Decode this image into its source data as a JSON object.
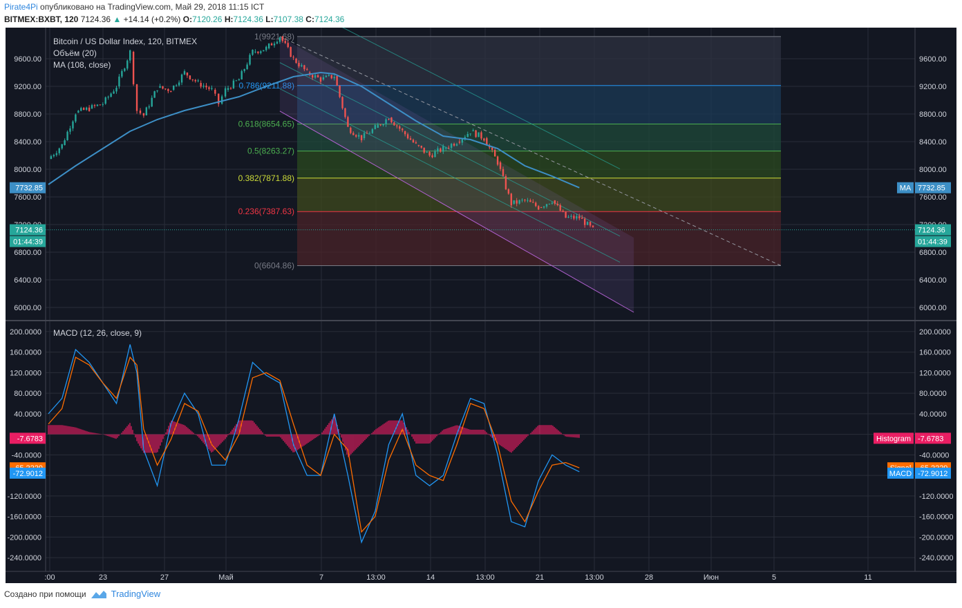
{
  "header": {
    "user": "Pirate4Pi",
    "published": "опубликовано на TradingView.com, Май 29, 2018 11:15 ICT",
    "symbol": "BITMEX:BXBT, 120",
    "last": "7124.36",
    "change": "+14.14 (+0.2%)",
    "o_label": "O:",
    "o": "7120.26",
    "h_label": "H:",
    "h": "7124.36",
    "l_label": "L:",
    "l": "7107.38",
    "c_label": "C:",
    "c": "7124.36"
  },
  "legend": {
    "title": "Bitcoin / US Dollar Index, 120, BITMEX",
    "volume": "Объём (20)",
    "ma": "MA (108, close)",
    "macd": "MACD (12, 26, close, 9)"
  },
  "footer": {
    "created": "Создано при помощи",
    "brand": "TradingView"
  },
  "colors": {
    "bg": "#131722",
    "grid": "#2a2e39",
    "up": "#26a69a",
    "down": "#ef5350",
    "ma": "#3d8fc6",
    "macd": "#2196f3",
    "signal": "#ff6d00",
    "hist": "#e91e63"
  },
  "chart_data": [
    {
      "type": "candlestick",
      "title": "Bitcoin / US Dollar Index, 120, BITMEX",
      "x_ticks": [
        ":00",
        "23",
        "27",
        "Май",
        "7",
        "13:00",
        "14",
        "13:00",
        "21",
        "13:00",
        "28",
        "Июн",
        "5",
        "11"
      ],
      "y_ticks": [
        "9600.00",
        "9200.00",
        "8800.00",
        "8400.00",
        "8000.00",
        "7600.00",
        "7200.00",
        "6800.00",
        "6400.00",
        "6000.00"
      ],
      "ylim": [
        5850,
        9950
      ],
      "path_points": [
        [
          "Apr 19",
          8150
        ],
        [
          "Apr 20",
          8350
        ],
        [
          "Apr 21",
          8820
        ],
        [
          "Apr 22",
          8880
        ],
        [
          "Apr 23",
          8950
        ],
        [
          "Apr 24",
          9200
        ],
        [
          "Apr 25",
          9700
        ],
        [
          "Apr 25 12h",
          8850
        ],
        [
          "Apr 26",
          8780
        ],
        [
          "Apr 27",
          9180
        ],
        [
          "Apr 28",
          9150
        ],
        [
          "Apr 29",
          9400
        ],
        [
          "Apr 30",
          9250
        ],
        [
          "May 1",
          9150
        ],
        [
          "May 1 12h",
          8950
        ],
        [
          "May 2",
          9150
        ],
        [
          "May 3",
          9300
        ],
        [
          "May 4",
          9700
        ],
        [
          "May 5",
          9750
        ],
        [
          "May 6",
          9921.68
        ],
        [
          "May 7",
          9600
        ],
        [
          "May 8",
          9400
        ],
        [
          "May 9",
          9300
        ],
        [
          "May 10",
          9350
        ],
        [
          "May 11",
          8600
        ],
        [
          "May 12",
          8450
        ],
        [
          "May 13",
          8600
        ],
        [
          "May 14",
          8750
        ],
        [
          "May 15",
          8550
        ],
        [
          "May 16",
          8350
        ],
        [
          "May 17",
          8200
        ],
        [
          "May 18",
          8300
        ],
        [
          "May 19",
          8400
        ],
        [
          "May 20",
          8550
        ],
        [
          "May 21",
          8450
        ],
        [
          "May 22",
          8100
        ],
        [
          "May 23",
          7500
        ],
        [
          "May 24",
          7550
        ],
        [
          "May 25",
          7450
        ],
        [
          "May 26",
          7550
        ],
        [
          "May 27",
          7300
        ],
        [
          "May 28",
          7300
        ],
        [
          "May 29",
          7124.36
        ]
      ],
      "last_price": "7124.36",
      "countdown": "01:44:39",
      "ma_label": "MA",
      "ma_value": "7732.85",
      "ma_points": [
        [
          "Apr 19",
          7780
        ],
        [
          "Apr 21",
          8050
        ],
        [
          "Apr 23",
          8300
        ],
        [
          "Apr 25",
          8550
        ],
        [
          "Apr 27",
          8720
        ],
        [
          "Apr 29",
          8850
        ],
        [
          "May 1",
          8950
        ],
        [
          "May 3",
          9050
        ],
        [
          "May 5",
          9200
        ],
        [
          "May 7",
          9340
        ],
        [
          "May 9",
          9400
        ],
        [
          "May 10",
          9380
        ],
        [
          "May 12",
          9200
        ],
        [
          "May 14",
          8950
        ],
        [
          "May 16",
          8700
        ],
        [
          "May 18",
          8480
        ],
        [
          "May 20",
          8430
        ],
        [
          "May 22",
          8300
        ],
        [
          "May 24",
          8050
        ],
        [
          "May 26",
          7900
        ],
        [
          "May 28",
          7732.85
        ]
      ],
      "fib_levels": [
        {
          "label": "1(9921.68)",
          "value": 9921.68,
          "color": "#787b86"
        },
        {
          "label": "0.786(9211.88)",
          "value": 9211.88,
          "color": "#2196f3"
        },
        {
          "label": "0.618(8654.65)",
          "value": 8654.65,
          "color": "#4caf50"
        },
        {
          "label": "0.5(8263.27)",
          "value": 8263.27,
          "color": "#4caf50"
        },
        {
          "label": "0.382(7871.88)",
          "value": 7871.88,
          "color": "#cddc39"
        },
        {
          "label": "0.236(7387.63)",
          "value": 7387.63,
          "color": "#f23645"
        },
        {
          "label": "0(6604.86)",
          "value": 6604.86,
          "color": "#787b86"
        }
      ],
      "channel": {
        "start": [
          "May 6",
          9921.68
        ],
        "end": [
          "Jun 1",
          7010
        ],
        "width": 1080
      }
    },
    {
      "type": "line",
      "title": "MACD (12, 26, close, 9)",
      "y_ticks": [
        "200.0000",
        "160.0000",
        "120.0000",
        "80.0000",
        "40.0000",
        "-40.0000",
        "-80.0000",
        "-120.0000",
        "-160.0000",
        "-200.0000",
        "-240.0000"
      ],
      "ylim": [
        -260,
        220
      ],
      "series": [
        {
          "name": "MACD",
          "value": "-72.9012",
          "points": [
            [
              "Apr 19",
              40
            ],
            [
              "Apr 20",
              70
            ],
            [
              "Apr 21",
              165
            ],
            [
              "Apr 22",
              140
            ],
            [
              "Apr 23",
              100
            ],
            [
              "Apr 24",
              60
            ],
            [
              "Apr 25",
              175
            ],
            [
              "Apr 25 12h",
              120
            ],
            [
              "Apr 26",
              -30
            ],
            [
              "Apr 27",
              -100
            ],
            [
              "Apr 28",
              20
            ],
            [
              "Apr 29",
              80
            ],
            [
              "Apr 30",
              40
            ],
            [
              "May 1",
              -60
            ],
            [
              "May 2",
              -60
            ],
            [
              "May 3",
              30
            ],
            [
              "May 4",
              140
            ],
            [
              "May 5",
              115
            ],
            [
              "May 6",
              100
            ],
            [
              "May 7",
              -20
            ],
            [
              "May 8",
              -80
            ],
            [
              "May 9",
              -80
            ],
            [
              "May 10",
              40
            ],
            [
              "May 11",
              -80
            ],
            [
              "May 12",
              -210
            ],
            [
              "May 13",
              -150
            ],
            [
              "May 14",
              -20
            ],
            [
              "May 15",
              40
            ],
            [
              "May 16",
              -80
            ],
            [
              "May 17",
              -100
            ],
            [
              "May 18",
              -80
            ],
            [
              "May 19",
              0
            ],
            [
              "May 20",
              70
            ],
            [
              "May 21",
              60
            ],
            [
              "May 22",
              -40
            ],
            [
              "May 23",
              -170
            ],
            [
              "May 24",
              -180
            ],
            [
              "May 25",
              -90
            ],
            [
              "May 26",
              -40
            ],
            [
              "May 27",
              -60
            ],
            [
              "May 28",
              -72.9012
            ]
          ]
        },
        {
          "name": "Signal",
          "value": "-65.2229",
          "points": [
            [
              "Apr 19",
              20
            ],
            [
              "Apr 20",
              50
            ],
            [
              "Apr 21",
              150
            ],
            [
              "Apr 22",
              135
            ],
            [
              "Apr 23",
              100
            ],
            [
              "Apr 24",
              70
            ],
            [
              "Apr 25",
              150
            ],
            [
              "Apr 25 12h",
              135
            ],
            [
              "Apr 26",
              10
            ],
            [
              "Apr 27",
              -60
            ],
            [
              "Apr 28",
              -10
            ],
            [
              "Apr 29",
              60
            ],
            [
              "Apr 30",
              45
            ],
            [
              "May 1",
              -20
            ],
            [
              "May 2",
              -50
            ],
            [
              "May 3",
              0
            ],
            [
              "May 4",
              110
            ],
            [
              "May 5",
              120
            ],
            [
              "May 6",
              105
            ],
            [
              "May 7",
              20
            ],
            [
              "May 8",
              -60
            ],
            [
              "May 9",
              -80
            ],
            [
              "May 10",
              0
            ],
            [
              "May 11",
              -30
            ],
            [
              "May 12",
              -190
            ],
            [
              "May 13",
              -160
            ],
            [
              "May 14",
              -50
            ],
            [
              "May 15",
              10
            ],
            [
              "May 16",
              -60
            ],
            [
              "May 17",
              -80
            ],
            [
              "May 18",
              -90
            ],
            [
              "May 19",
              -20
            ],
            [
              "May 20",
              60
            ],
            [
              "May 21",
              50
            ],
            [
              "May 22",
              -20
            ],
            [
              "May 23",
              -130
            ],
            [
              "May 24",
              -170
            ],
            [
              "May 25",
              -110
            ],
            [
              "May 26",
              -60
            ],
            [
              "May 27",
              -55
            ],
            [
              "May 28",
              -65.2229
            ]
          ]
        },
        {
          "name": "Histogram",
          "value": "-7.6783",
          "points": []
        }
      ]
    }
  ]
}
